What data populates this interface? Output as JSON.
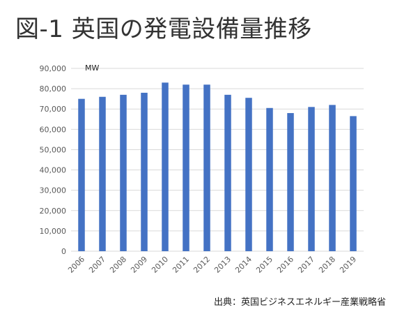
{
  "page": {
    "title": "図-1 英国の発電設備量推移",
    "source": "出典：英国ビジネスエネルギー産業戦略省"
  },
  "chart_data": {
    "type": "bar",
    "title": "図-1 英国の発電設備量推移",
    "unit_label": "MW",
    "xlabel": "",
    "ylabel": "MW",
    "categories": [
      "2006",
      "2007",
      "2008",
      "2009",
      "2010",
      "2011",
      "2012",
      "2013",
      "2014",
      "2015",
      "2016",
      "2017",
      "2018",
      "2019"
    ],
    "values": [
      75000,
      76000,
      77000,
      78000,
      83000,
      82000,
      82000,
      77000,
      75500,
      70500,
      68000,
      71000,
      72000,
      66500
    ],
    "ylim": [
      0,
      90000
    ],
    "yticks": [
      0,
      10000,
      20000,
      30000,
      40000,
      50000,
      60000,
      70000,
      80000,
      90000
    ],
    "ytick_labels": [
      "0",
      "10,000",
      "20,000",
      "30,000",
      "40,000",
      "50,000",
      "60,000",
      "70,000",
      "80,000",
      "90,000"
    ],
    "grid": true,
    "legend": "none",
    "bar_color": "#4472C4",
    "grid_color": "#d9d9d9"
  }
}
